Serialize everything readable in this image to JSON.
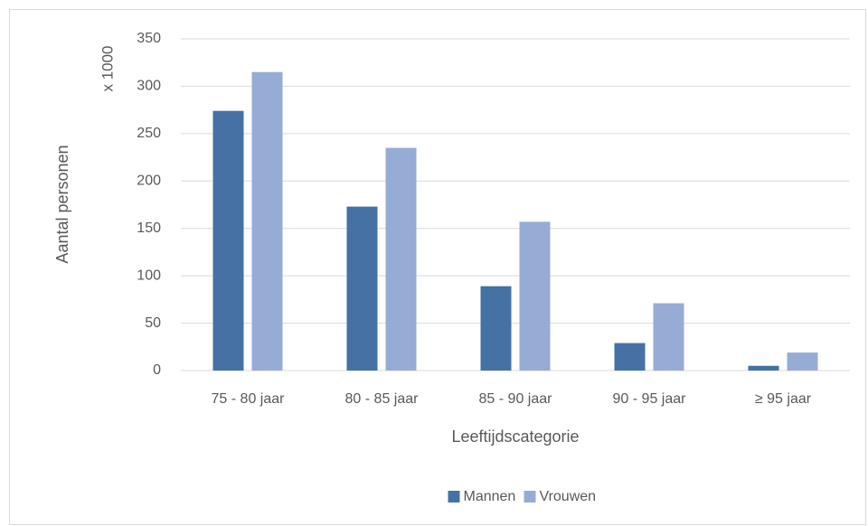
{
  "chart_data": {
    "type": "bar",
    "categories": [
      "75 - 80 jaar",
      "80 - 85 jaar",
      "85 - 90 jaar",
      "90 - 95 jaar",
      "≥ 95 jaar"
    ],
    "series": [
      {
        "name": "Mannen",
        "color": "#4571a5",
        "values": [
          274,
          173,
          89,
          29,
          5
        ]
      },
      {
        "name": "Vrouwen",
        "color": "#97acd4",
        "values": [
          315,
          235,
          157,
          71,
          19
        ]
      }
    ],
    "y_label": "Aantal personen",
    "y_unit_label": "x 1000",
    "x_label": "Leeftijdscategorie",
    "ylim": [
      0,
      350
    ],
    "yticks": [
      0,
      50,
      100,
      150,
      200,
      250,
      300,
      350
    ],
    "grid": true,
    "legend": "bottom"
  }
}
